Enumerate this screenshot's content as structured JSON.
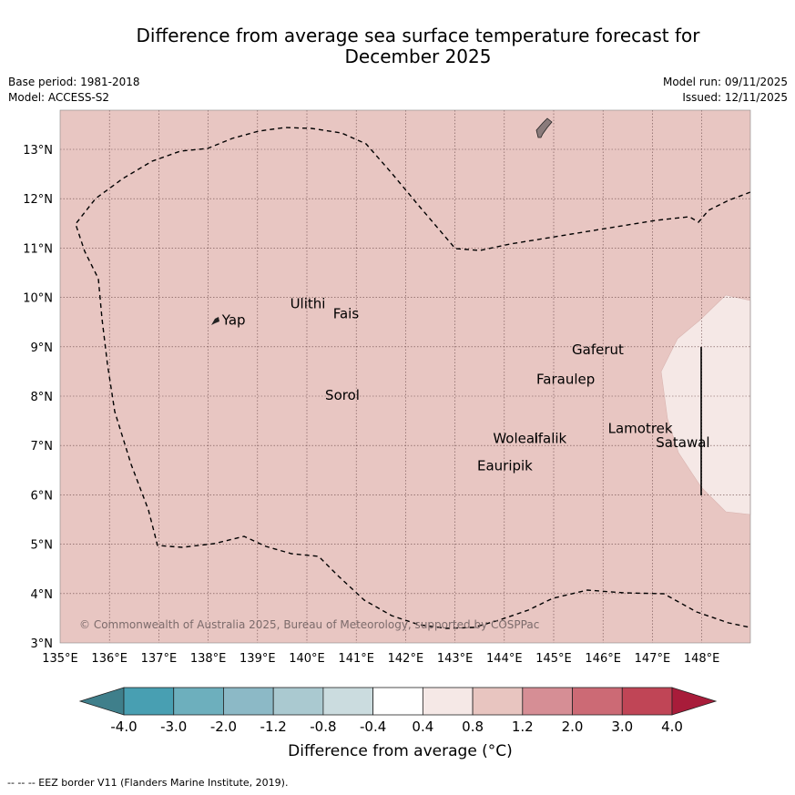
{
  "title_line1": "Difference from average sea surface temperature forecast for",
  "title_line2": "December 2025",
  "base_period": "Base period: 1981-2018",
  "model": "Model: ACCESS-S2",
  "model_run": "Model run: 09/11/2025",
  "issued": "Issued: 12/11/2025",
  "copyright": "© Commonwealth of Australia 2025, Bureau of Meteorology, supported by COSPPac",
  "x_ticks": [
    "135°E",
    "136°E",
    "137°E",
    "138°E",
    "139°E",
    "140°E",
    "141°E",
    "142°E",
    "143°E",
    "144°E",
    "145°E",
    "146°E",
    "147°E",
    "148°E"
  ],
  "y_ticks": [
    "13°N",
    "12°N",
    "11°N",
    "10°N",
    "9°N",
    "8°N",
    "7°N",
    "6°N",
    "5°N",
    "4°N",
    "3°N"
  ],
  "places": [
    {
      "name": "Yap",
      "lon": 138.28,
      "lat": 9.45
    },
    {
      "name": "Ulithi",
      "lon": 139.66,
      "lat": 9.78
    },
    {
      "name": "Fais",
      "lon": 140.53,
      "lat": 9.58
    },
    {
      "name": "Gaferut",
      "lon": 145.37,
      "lat": 8.85
    },
    {
      "name": "Faraulep",
      "lon": 144.65,
      "lat": 8.25
    },
    {
      "name": "Sorol",
      "lon": 140.37,
      "lat": 7.93
    },
    {
      "name": "Lamotrek",
      "lon": 146.1,
      "lat": 7.25
    },
    {
      "name": "Woleai",
      "lon": 143.77,
      "lat": 7.05
    },
    {
      "name": "Ifalik",
      "lon": 144.6,
      "lat": 7.05
    },
    {
      "name": "Satawal",
      "lon": 147.07,
      "lat": 6.97
    },
    {
      "name": "Eauripik",
      "lon": 143.45,
      "lat": 6.5
    }
  ],
  "colorbar": {
    "labels": [
      "-4.0",
      "-3.0",
      "-2.0",
      "-1.2",
      "-0.8",
      "-0.4",
      "0.4",
      "0.8",
      "1.2",
      "2.0",
      "3.0",
      "4.0"
    ],
    "colors": [
      "#3f7f8b",
      "#489fb2",
      "#6dafbd",
      "#8cb9c6",
      "#aac9d0",
      "#cbdcdf",
      "#ffffff",
      "#f5e8e6",
      "#e8c5c0",
      "#d68e95",
      "#cc6a75",
      "#c04556",
      "#a81c3a"
    ],
    "unit": "Difference from average (°C)"
  },
  "footer": "--  --  -- EEZ border V11 (Flanders Marine Institute, 2019)."
}
